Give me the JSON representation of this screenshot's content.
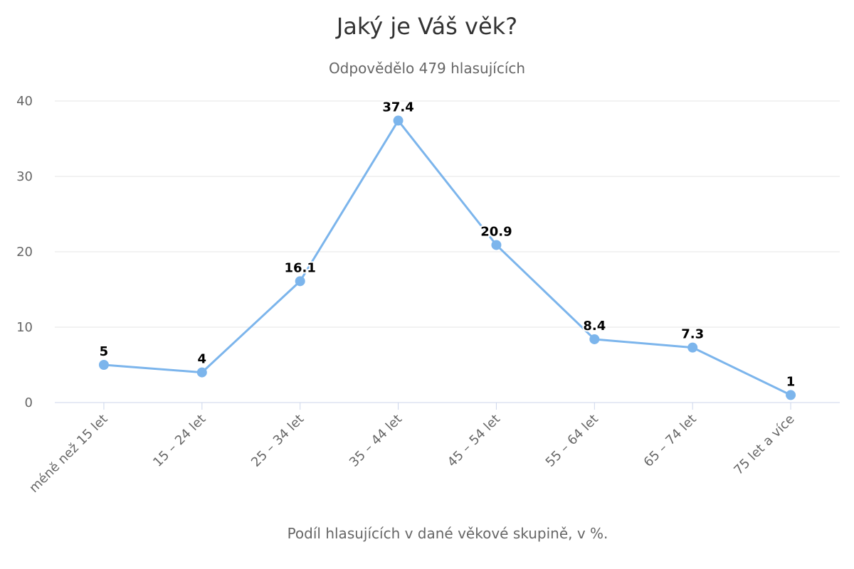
{
  "chart_data": {
    "type": "line",
    "title": "Jaký je Váš věk?",
    "subtitle": "Odpovědělo 479 hlasujících",
    "xlabel": "Podíl hlasujících v dané věkové skupině, v %.",
    "ylabel": "",
    "categories": [
      "méně než 15 let",
      "15 – 24 let",
      "25 – 34 let",
      "35 – 44 let",
      "45 – 54 let",
      "55 – 64 let",
      "65 – 74 let",
      "75 let a více"
    ],
    "values": [
      5,
      4,
      16.1,
      37.4,
      20.9,
      8.4,
      7.3,
      1
    ],
    "data_labels": [
      "5",
      "4",
      "16.1",
      "37.4",
      "20.9",
      "8.4",
      "7.3",
      "1"
    ],
    "ylim": [
      0,
      40
    ],
    "yticks": [
      0,
      10,
      20,
      30,
      40
    ],
    "ytick_labels": [
      "0",
      "10",
      "20",
      "30",
      "40"
    ],
    "grid": true,
    "legend": "none",
    "colors": {
      "series": "#7cb5ec",
      "grid": "#e6e6e6",
      "axis": "#ccd6eb"
    }
  }
}
